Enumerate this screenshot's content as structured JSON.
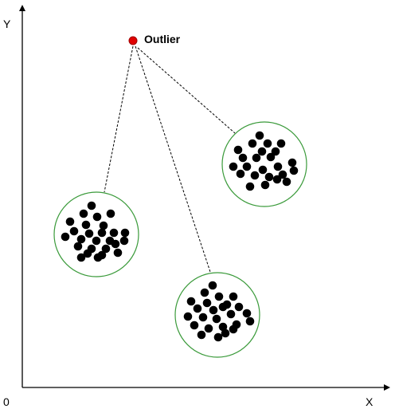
{
  "axes": {
    "x_label": "X",
    "y_label": "Y",
    "origin_label": "0"
  },
  "outlier": {
    "label": "Outlier",
    "color": "#e00000",
    "stroke": "#a00000"
  },
  "colors": {
    "cluster_ring": "#3a9a3a",
    "point": "#000000",
    "link": "#000000",
    "axis": "#000000"
  }
}
